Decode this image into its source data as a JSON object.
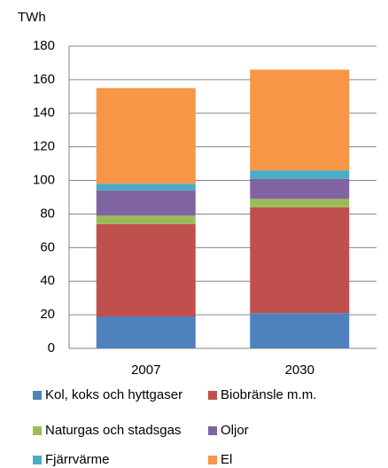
{
  "chart_data": {
    "type": "stacked_bar",
    "y_axis_label": "TWh",
    "categories": [
      "2007",
      "2030"
    ],
    "series": [
      {
        "name": "Kol, koks och hyttgaser",
        "color": "#4f81bd",
        "values": [
          19,
          21
        ]
      },
      {
        "name": "Biobränsle m.m.",
        "color": "#c0504d",
        "values": [
          55,
          63
        ]
      },
      {
        "name": "Naturgas och stadsgas",
        "color": "#9bbb59",
        "values": [
          5,
          5
        ]
      },
      {
        "name": "Oljor",
        "color": "#8064a2",
        "values": [
          15,
          12
        ]
      },
      {
        "name": "Fjärrvärme",
        "color": "#4bacc6",
        "values": [
          4,
          5
        ]
      },
      {
        "name": "El",
        "color": "#f79646",
        "values": [
          57,
          60
        ]
      }
    ],
    "ylim": [
      0,
      180
    ],
    "yticks": [
      0,
      20,
      40,
      60,
      80,
      100,
      120,
      140,
      160,
      180
    ],
    "grid": true,
    "legend": "bottom"
  }
}
